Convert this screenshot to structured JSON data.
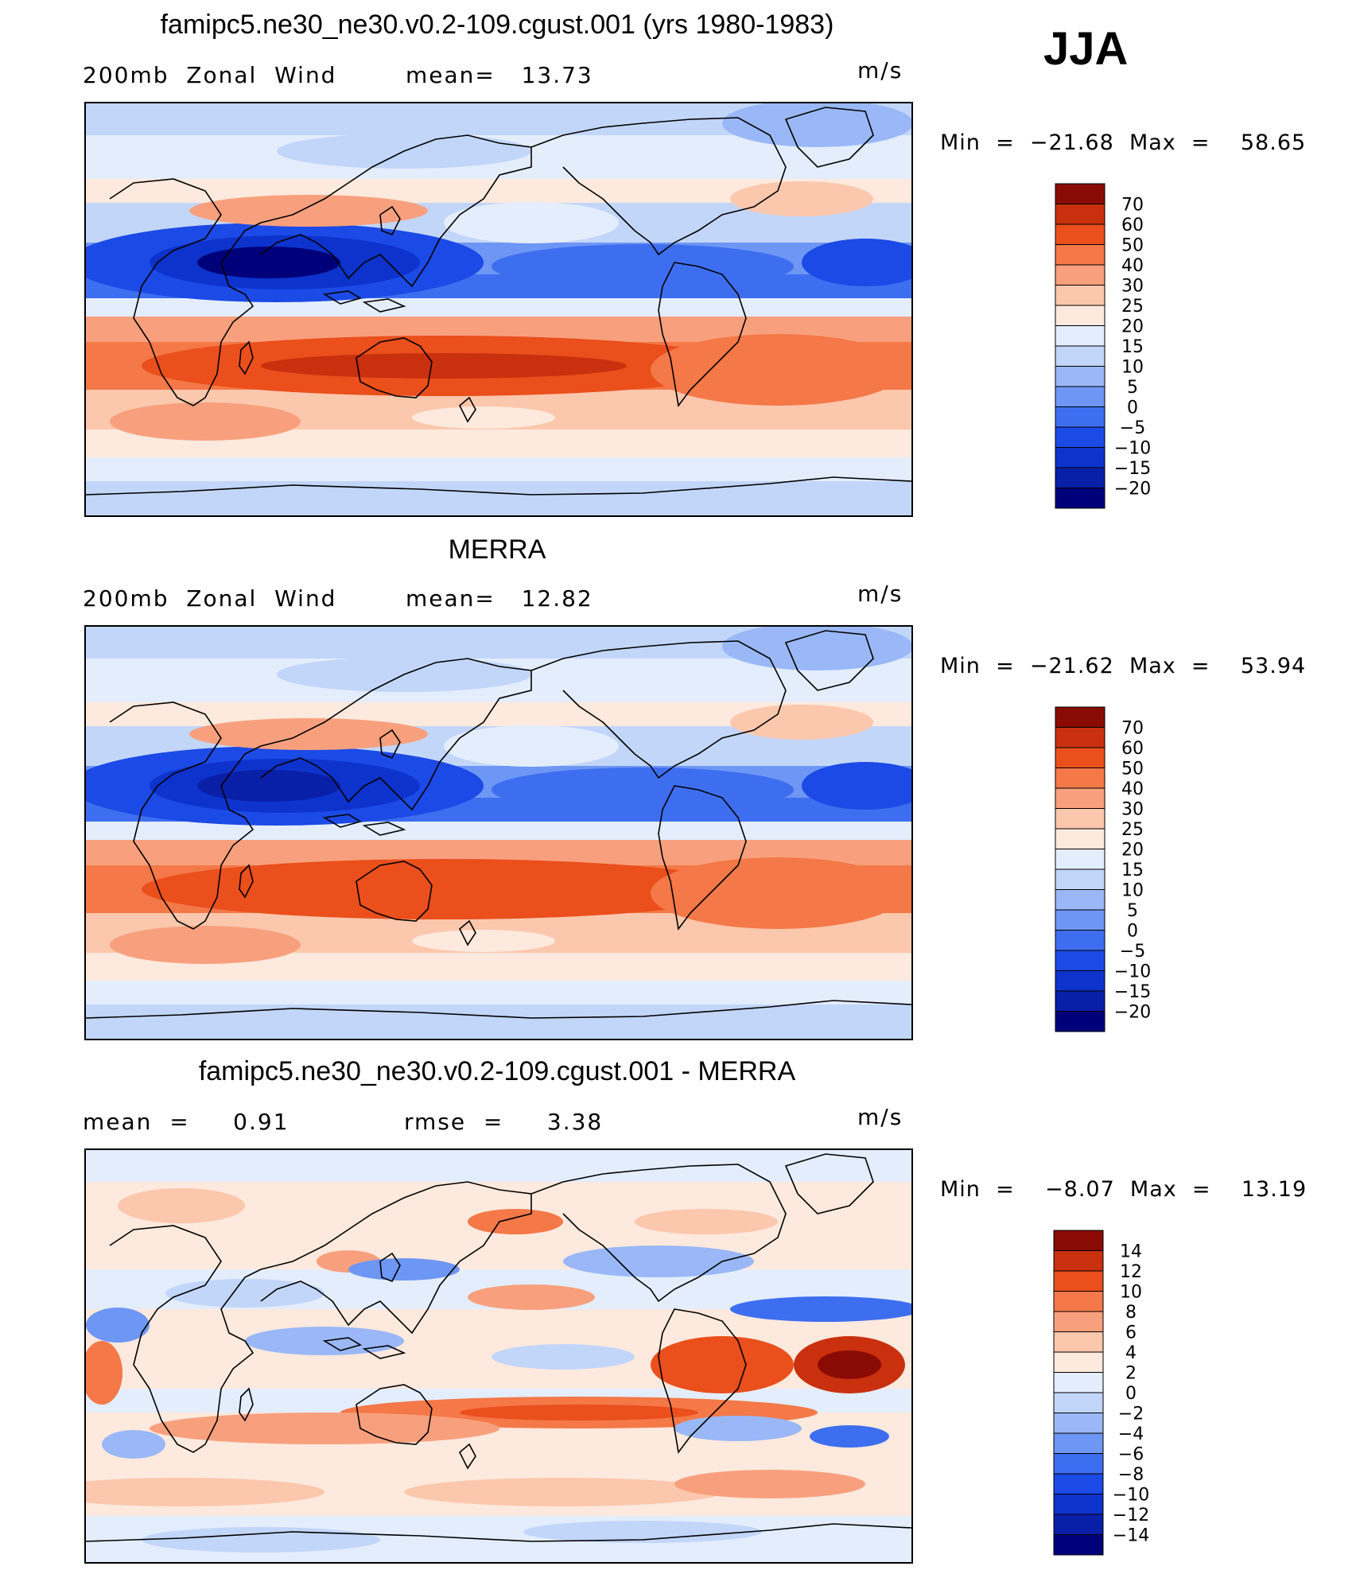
{
  "season": "JJA",
  "units": "m/s",
  "colors": {
    "wind_levels": [
      "#00007a",
      "#0a1fa8",
      "#0d33cc",
      "#1c4ae6",
      "#3e6ef0",
      "#6e96f4",
      "#9ab8f7",
      "#c2d6fa",
      "#e3edfc",
      "#fde9dd",
      "#fbc7ad",
      "#f8a07d",
      "#f47848",
      "#ea4f1c",
      "#c9300e",
      "#8a0b04"
    ],
    "diff_levels": [
      "#00007a",
      "#0a1fa8",
      "#0d33cc",
      "#1c4ae6",
      "#3e6ef0",
      "#6e96f4",
      "#9ab8f7",
      "#c2d6fa",
      "#e3edfc",
      "#fde9dd",
      "#fbc7ad",
      "#f8a07d",
      "#f47848",
      "#ea4f1c",
      "#c9300e",
      "#8a0b04"
    ]
  },
  "panels": [
    {
      "title": "famipc5.ne30_ne30.v0.2-109.cgust.001 (yrs 1980-1983)",
      "left_label": "200mb  Zonal  Wind",
      "mid_label": "mean=   13.73",
      "units": "m/s",
      "min_max": "Min  =  −21.68  Max  =    58.65",
      "colorbar_labels": [
        "70",
        "60",
        "50",
        "40",
        "30",
        "25",
        "20",
        "15",
        "10",
        "5",
        "0",
        "−5",
        "−10",
        "−15",
        "−20"
      ],
      "kind": "wind"
    },
    {
      "title": "MERRA",
      "left_label": "200mb  Zonal  Wind",
      "mid_label": "mean=   12.82",
      "units": "m/s",
      "min_max": "Min  =  −21.62  Max  =    53.94",
      "colorbar_labels": [
        "70",
        "60",
        "50",
        "40",
        "30",
        "25",
        "20",
        "15",
        "10",
        "5",
        "0",
        "−5",
        "−10",
        "−15",
        "−20"
      ],
      "kind": "wind"
    },
    {
      "title": "famipc5.ne30_ne30.v0.2-109.cgust.001 - MERRA",
      "left_label": "mean  =     0.91",
      "mid_label": "rmse  =     3.38",
      "units": "m/s",
      "min_max": "Min  =    −8.07  Max  =    13.19",
      "colorbar_labels": [
        "14",
        "12",
        "10",
        "8",
        "6",
        "4",
        "2",
        "0",
        "−2",
        "−4",
        "−6",
        "−8",
        "−10",
        "−12",
        "−14"
      ],
      "kind": "diff"
    }
  ]
}
